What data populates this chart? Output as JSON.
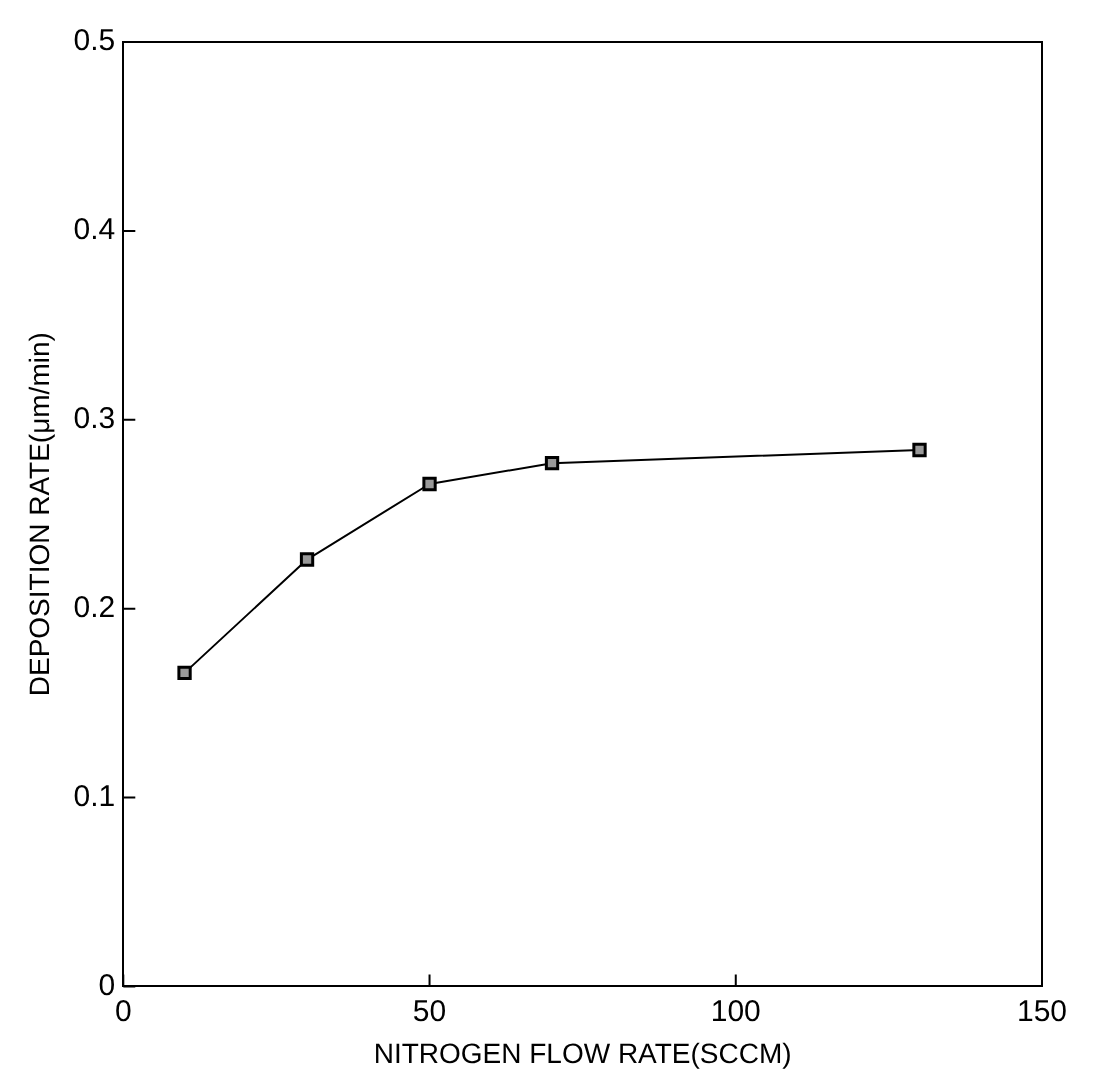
{
  "chart_data": {
    "type": "line",
    "xlabel": "NITROGEN FLOW RATE(SCCM)",
    "ylabel": "DEPOSITION RATE(μm/min)",
    "x": [
      10,
      30,
      50,
      70,
      130
    ],
    "series": [
      {
        "color": "#000000",
        "values": [
          0.166,
          0.226,
          0.266,
          0.277,
          0.284
        ]
      }
    ],
    "xlim": [
      0,
      150
    ],
    "xticks": [
      0,
      50,
      100,
      150
    ],
    "ylim": [
      0,
      0.5
    ],
    "yticks": [
      0,
      0.1,
      0.2,
      0.3,
      0.4,
      0.5
    ],
    "marker": "square",
    "line_style": "solid",
    "grid": false,
    "legend": false
  }
}
